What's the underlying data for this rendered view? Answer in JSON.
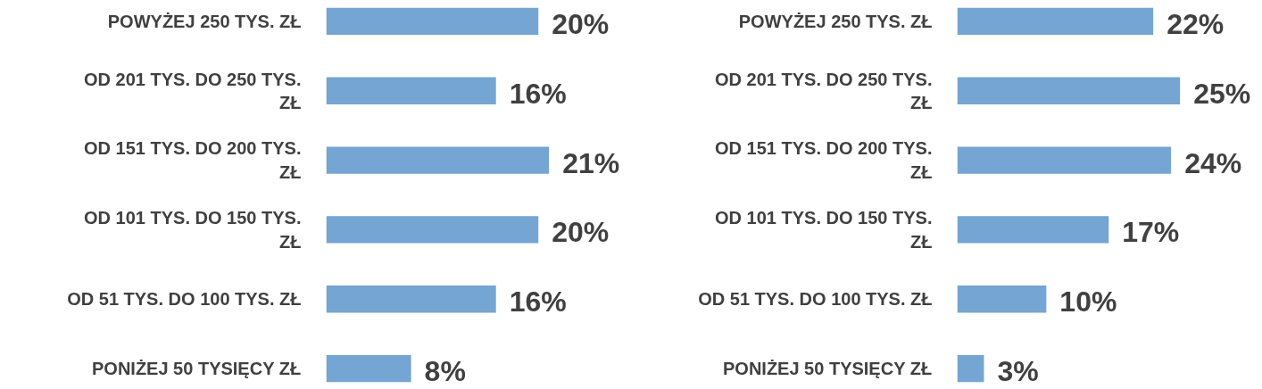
{
  "chart_data": [
    {
      "type": "bar",
      "orientation": "horizontal",
      "categories": [
        "POWYŻEJ 250 TYS. ZŁ",
        "OD 201 TYS. DO 250 TYS. ZŁ",
        "OD 151 TYS. DO 200 TYS. ZŁ",
        "OD 101 TYS. DO 150 TYS. ZŁ",
        "OD 51 TYS. DO 100 TYS. ZŁ",
        "PONIŻEJ 50 TYSIĘCY ZŁ"
      ],
      "values": [
        20,
        16,
        21,
        20,
        16,
        8
      ],
      "value_labels": [
        "20%",
        "16%",
        "21%",
        "20%",
        "16%",
        "8%"
      ],
      "color": "#75a5d2"
    },
    {
      "type": "bar",
      "orientation": "horizontal",
      "categories": [
        "POWYŻEJ 250 TYS. ZŁ",
        "OD 201 TYS. DO 250 TYS. ZŁ",
        "OD 151 TYS. DO 200 TYS. ZŁ",
        "OD 101 TYS. DO 150 TYS. ZŁ",
        "OD 51 TYS. DO 100 TYS. ZŁ",
        "PONIŻEJ 50 TYSIĘCY ZŁ"
      ],
      "values": [
        22,
        25,
        24,
        17,
        10,
        3
      ],
      "value_labels": [
        "22%",
        "25%",
        "24%",
        "17%",
        "10%",
        "3%"
      ],
      "color": "#75a5d2"
    }
  ]
}
